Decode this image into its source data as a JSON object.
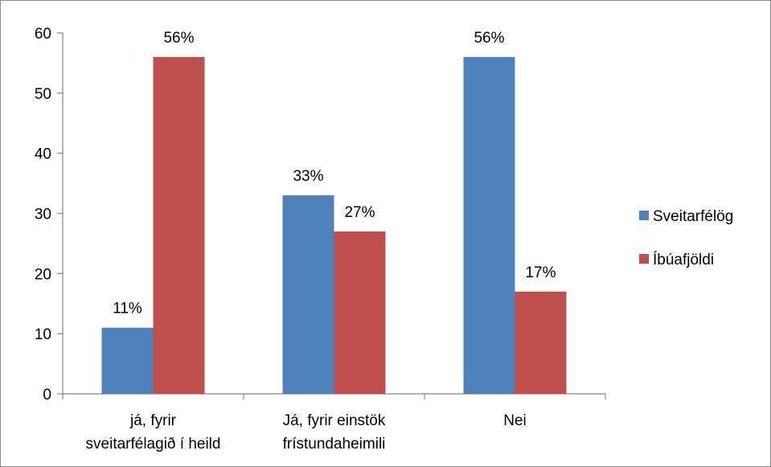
{
  "chart_data": {
    "type": "bar",
    "categories": [
      [
        "já, fyrir",
        "sveitarfélagið í heild"
      ],
      [
        "Já, fyrir einstök",
        "frístundaheimili"
      ],
      [
        "Nei"
      ]
    ],
    "series": [
      {
        "name": "Sveitarfélög",
        "color": "#4f81bd",
        "values": [
          11,
          33,
          56
        ],
        "data_labels": [
          "11%",
          "33%",
          "56%"
        ]
      },
      {
        "name": "Íbúafjöldi",
        "color": "#c0504d",
        "values": [
          56,
          27,
          17
        ],
        "data_labels": [
          "56%",
          "27%",
          "17%"
        ]
      }
    ],
    "ylim": [
      0,
      60
    ],
    "yticks": [
      0,
      10,
      20,
      30,
      40,
      50,
      60
    ],
    "grid": false,
    "legend": "right"
  }
}
